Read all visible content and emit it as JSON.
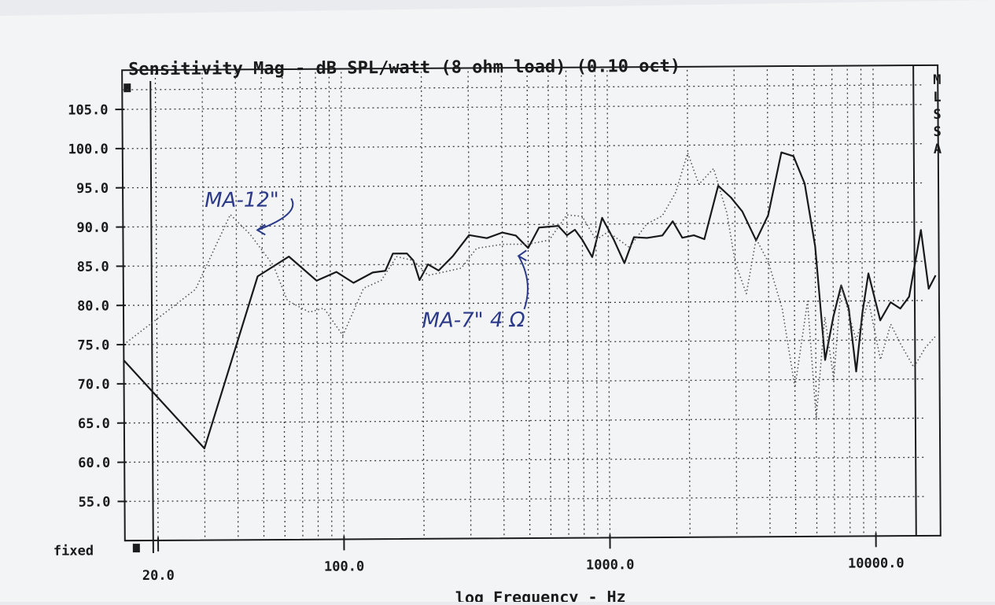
{
  "chart_data": {
    "type": "line",
    "title": "Sensitivity Mag - dB SPL/watt (8 ohm load) (0.10 oct)",
    "xlabel": "log Frequency - Hz",
    "x_scale": "log",
    "xlim": [
      15,
      17500
    ],
    "ylim": [
      50,
      110
    ],
    "x_ticks": [
      {
        "value": 20,
        "label": "20.0"
      },
      {
        "value": 100,
        "label": "100.0"
      },
      {
        "value": 1000,
        "label": "1000.0"
      },
      {
        "value": 10000,
        "label": "10000.0"
      }
    ],
    "y_ticks": [
      {
        "value": 105,
        "label": "105.0"
      },
      {
        "value": 100,
        "label": "100.0"
      },
      {
        "value": 95,
        "label": "95.0"
      },
      {
        "value": 90,
        "label": "90.0"
      },
      {
        "value": 85,
        "label": "85.0"
      },
      {
        "value": 80,
        "label": "80.0"
      },
      {
        "value": 75,
        "label": "75.0"
      },
      {
        "value": 70,
        "label": "70.0"
      },
      {
        "value": 65,
        "label": "65.0"
      },
      {
        "value": 60,
        "label": "60.0"
      },
      {
        "value": 55,
        "label": "55.0"
      }
    ],
    "y_bottom_label": "fixed",
    "side_label": "MLSSA",
    "grid": true,
    "series": [
      {
        "name": "",
        "style": "solid",
        "points": [
          [
            15,
            73
          ],
          [
            30,
            61.7
          ],
          [
            48,
            83.6
          ],
          [
            63,
            86.1
          ],
          [
            80,
            83
          ],
          [
            95,
            84.1
          ],
          [
            110,
            82.7
          ],
          [
            130,
            84
          ],
          [
            145,
            84.2
          ],
          [
            155,
            86.4
          ],
          [
            175,
            86.4
          ],
          [
            185,
            85.5
          ],
          [
            195,
            83
          ],
          [
            210,
            85
          ],
          [
            230,
            84.2
          ],
          [
            260,
            86
          ],
          [
            300,
            88.7
          ],
          [
            350,
            88.3
          ],
          [
            400,
            89
          ],
          [
            450,
            88.6
          ],
          [
            500,
            87
          ],
          [
            550,
            89.6
          ],
          [
            650,
            89.8
          ],
          [
            700,
            88.6
          ],
          [
            750,
            89.3
          ],
          [
            800,
            88
          ],
          [
            870,
            85.8
          ],
          [
            950,
            90.8
          ],
          [
            1050,
            88
          ],
          [
            1150,
            85
          ],
          [
            1250,
            88.3
          ],
          [
            1400,
            88.2
          ],
          [
            1600,
            88.5
          ],
          [
            1750,
            90.3
          ],
          [
            1900,
            88.2
          ],
          [
            2100,
            88.5
          ],
          [
            2300,
            88
          ],
          [
            2600,
            94.8
          ],
          [
            2900,
            93.3
          ],
          [
            3200,
            91.5
          ],
          [
            3600,
            87.8
          ],
          [
            4000,
            91
          ],
          [
            4500,
            99
          ],
          [
            5000,
            98.5
          ],
          [
            5500,
            95
          ],
          [
            6000,
            87
          ],
          [
            6500,
            72.5
          ],
          [
            7000,
            78
          ],
          [
            7500,
            82
          ],
          [
            8000,
            79
          ],
          [
            8500,
            71
          ],
          [
            9000,
            78.5
          ],
          [
            9500,
            83.5
          ],
          [
            10500,
            77.5
          ],
          [
            11500,
            79.8
          ],
          [
            12500,
            79
          ],
          [
            13500,
            80.5
          ],
          [
            15000,
            89
          ],
          [
            16000,
            81.5
          ],
          [
            17000,
            83.2
          ]
        ]
      },
      {
        "name": "",
        "style": "dotted",
        "points": [
          [
            15,
            75
          ],
          [
            28,
            82
          ],
          [
            38,
            91.5
          ],
          [
            45,
            89
          ],
          [
            55,
            85
          ],
          [
            62,
            80.5
          ],
          [
            75,
            79
          ],
          [
            85,
            79.5
          ],
          [
            100,
            76
          ],
          [
            120,
            82
          ],
          [
            140,
            83
          ],
          [
            160,
            86
          ],
          [
            185,
            85.5
          ],
          [
            210,
            83.6
          ],
          [
            240,
            84
          ],
          [
            280,
            84.5
          ],
          [
            320,
            87
          ],
          [
            400,
            87.5
          ],
          [
            500,
            87.5
          ],
          [
            600,
            88
          ],
          [
            700,
            91.2
          ],
          [
            800,
            91
          ],
          [
            900,
            88
          ],
          [
            1000,
            89
          ],
          [
            1200,
            87
          ],
          [
            1400,
            90
          ],
          [
            1600,
            91
          ],
          [
            1800,
            94
          ],
          [
            2000,
            99
          ],
          [
            2200,
            95
          ],
          [
            2500,
            97
          ],
          [
            2800,
            91.3
          ],
          [
            3000,
            85
          ],
          [
            3300,
            81
          ],
          [
            3600,
            88
          ],
          [
            4000,
            85
          ],
          [
            4500,
            79
          ],
          [
            5000,
            69
          ],
          [
            5600,
            80
          ],
          [
            6000,
            65
          ],
          [
            6500,
            78
          ],
          [
            7000,
            70
          ],
          [
            7500,
            82
          ],
          [
            8500,
            75
          ],
          [
            9500,
            80
          ],
          [
            10500,
            72.5
          ],
          [
            11500,
            77
          ],
          [
            12500,
            74.5
          ],
          [
            14000,
            71.5
          ],
          [
            15500,
            74
          ],
          [
            17000,
            75.5
          ]
        ]
      }
    ],
    "annotations": [
      {
        "text": "MA-12\"",
        "frequency": 40,
        "db": 92.5,
        "arrow_to": [
          48,
          89.5
        ]
      },
      {
        "text": "MA-7\" 4 Ω",
        "frequency": 450,
        "db": 77,
        "arrow_to": [
          460,
          86
        ]
      }
    ]
  }
}
